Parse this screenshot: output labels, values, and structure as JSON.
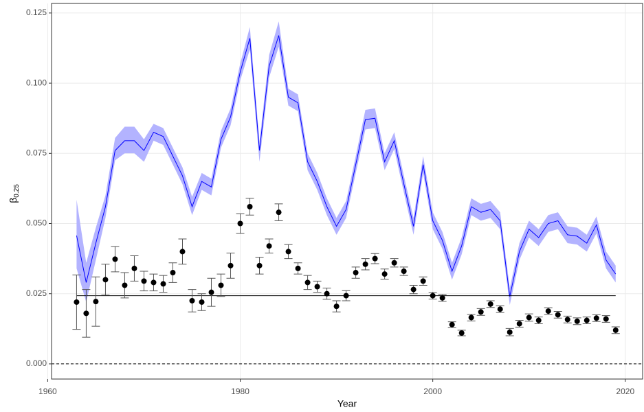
{
  "chart_data": {
    "type": "line",
    "x_label": "Year",
    "y_label": "β",
    "y_label_subscript": "0.25",
    "x": [
      1963,
      1964,
      1965,
      1966,
      1967,
      1968,
      1969,
      1970,
      1971,
      1972,
      1973,
      1974,
      1975,
      1976,
      1977,
      1978,
      1979,
      1980,
      1981,
      1982,
      1983,
      1984,
      1985,
      1986,
      1987,
      1988,
      1989,
      1990,
      1991,
      1992,
      1993,
      1994,
      1995,
      1996,
      1997,
      1998,
      1999,
      2000,
      2001,
      2002,
      2003,
      2004,
      2005,
      2006,
      2007,
      2008,
      2009,
      2010,
      2011,
      2012,
      2013,
      2014,
      2015,
      2016,
      2017,
      2018,
      2019
    ],
    "line": {
      "color": "#0000ff",
      "band_color": "#b3b3ff",
      "values": [
        0.0457,
        0.029,
        0.043,
        0.056,
        0.076,
        0.0795,
        0.0795,
        0.076,
        0.0825,
        0.081,
        0.074,
        0.067,
        0.056,
        0.065,
        0.063,
        0.08,
        0.088,
        0.104,
        0.116,
        0.076,
        0.106,
        0.117,
        0.095,
        0.093,
        0.072,
        0.065,
        0.056,
        0.049,
        0.055,
        0.071,
        0.087,
        0.0875,
        0.072,
        0.0795,
        0.064,
        0.049,
        0.071,
        0.051,
        0.044,
        0.033,
        0.042,
        0.056,
        0.054,
        0.055,
        0.051,
        0.024,
        0.04,
        0.048,
        0.045,
        0.05,
        0.051,
        0.046,
        0.0455,
        0.043,
        0.0495,
        0.037,
        0.032
      ],
      "upper": [
        0.0585,
        0.036,
        0.0485,
        0.06,
        0.0805,
        0.0845,
        0.0845,
        0.08,
        0.0855,
        0.084,
        0.077,
        0.07,
        0.0595,
        0.068,
        0.066,
        0.083,
        0.091,
        0.107,
        0.12,
        0.079,
        0.11,
        0.122,
        0.098,
        0.096,
        0.075,
        0.068,
        0.059,
        0.052,
        0.058,
        0.074,
        0.0905,
        0.091,
        0.075,
        0.0825,
        0.067,
        0.052,
        0.074,
        0.054,
        0.047,
        0.036,
        0.045,
        0.059,
        0.057,
        0.058,
        0.054,
        0.027,
        0.043,
        0.051,
        0.048,
        0.053,
        0.054,
        0.049,
        0.0485,
        0.046,
        0.0525,
        0.04,
        0.035
      ],
      "lower": [
        0.034,
        0.022,
        0.037,
        0.052,
        0.0725,
        0.075,
        0.075,
        0.072,
        0.0795,
        0.078,
        0.071,
        0.064,
        0.053,
        0.062,
        0.06,
        0.077,
        0.085,
        0.101,
        0.112,
        0.072,
        0.102,
        0.113,
        0.092,
        0.09,
        0.069,
        0.062,
        0.053,
        0.046,
        0.052,
        0.068,
        0.0835,
        0.084,
        0.069,
        0.0765,
        0.061,
        0.046,
        0.068,
        0.048,
        0.041,
        0.03,
        0.039,
        0.053,
        0.051,
        0.052,
        0.048,
        0.021,
        0.037,
        0.045,
        0.042,
        0.047,
        0.048,
        0.043,
        0.0425,
        0.04,
        0.0465,
        0.034,
        0.029
      ]
    },
    "points": {
      "color": "#000000",
      "error_color": "#555555",
      "values": [
        0.022,
        0.018,
        0.0222,
        0.03,
        0.0373,
        0.028,
        0.034,
        0.0295,
        0.029,
        0.0285,
        0.0325,
        0.04,
        0.0225,
        0.022,
        0.0255,
        0.028,
        0.035,
        0.05,
        0.056,
        0.035,
        0.042,
        0.054,
        0.04,
        0.034,
        0.029,
        0.0275,
        0.025,
        0.0205,
        0.0243,
        0.0325,
        0.0355,
        0.0375,
        0.032,
        0.036,
        0.033,
        0.0265,
        0.0295,
        0.0243,
        0.0235,
        0.014,
        0.011,
        0.0165,
        0.0185,
        0.0213,
        0.0195,
        0.0113,
        0.0143,
        0.0165,
        0.0155,
        0.0188,
        0.0175,
        0.0158,
        0.0152,
        0.0155,
        0.0163,
        0.016,
        0.012
      ],
      "errors": [
        0.0097,
        0.0085,
        0.0088,
        0.0055,
        0.0045,
        0.0045,
        0.0045,
        0.0035,
        0.003,
        0.003,
        0.0035,
        0.0045,
        0.004,
        0.003,
        0.005,
        0.004,
        0.0045,
        0.0035,
        0.003,
        0.003,
        0.0025,
        0.003,
        0.0025,
        0.002,
        0.0025,
        0.002,
        0.002,
        0.002,
        0.0018,
        0.002,
        0.002,
        0.0018,
        0.0018,
        0.0015,
        0.0015,
        0.0015,
        0.0015,
        0.0012,
        0.0012,
        0.001,
        0.001,
        0.0012,
        0.0012,
        0.0012,
        0.0012,
        0.0013,
        0.0012,
        0.0013,
        0.0012,
        0.0012,
        0.0012,
        0.0012,
        0.0012,
        0.0012,
        0.0012,
        0.0012,
        0.0012
      ]
    },
    "reference_line": 0.0243,
    "zero_line": 0,
    "xlim": [
      1960.4,
      2021.8
    ],
    "ylim": [
      -0.0054,
      0.1284
    ],
    "xticks": [
      1960,
      1980,
      2000,
      2020
    ],
    "yticks": [
      {
        "value": 0,
        "label": "0.000"
      },
      {
        "value": 0.025,
        "label": "0.025"
      },
      {
        "value": 0.05,
        "label": "0.050"
      },
      {
        "value": 0.075,
        "label": "0.075"
      },
      {
        "value": 0.1,
        "label": "0.100"
      },
      {
        "value": 0.125,
        "label": "0.125"
      }
    ],
    "grid": true
  }
}
